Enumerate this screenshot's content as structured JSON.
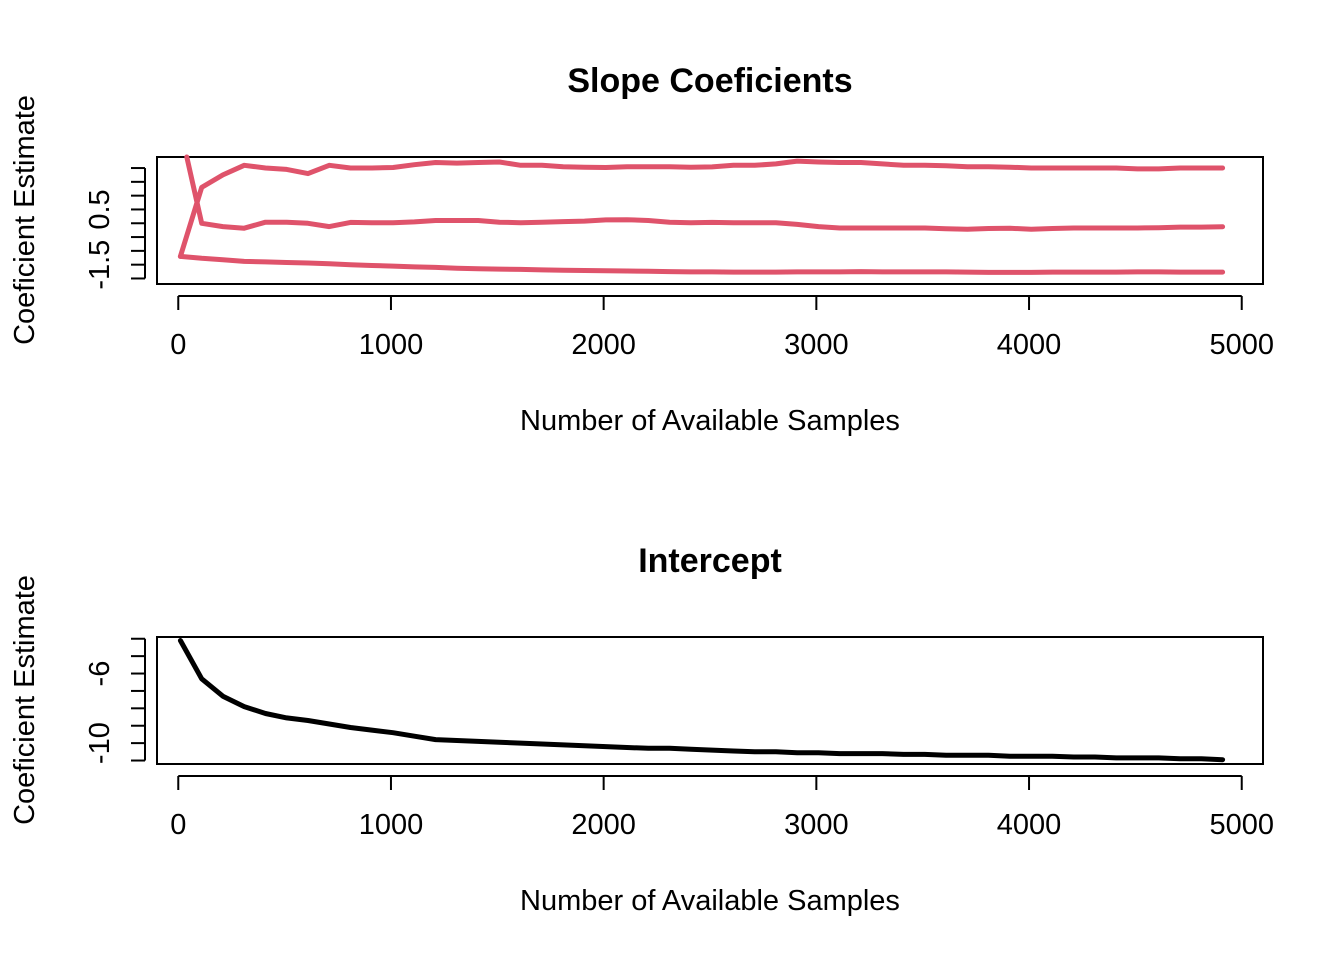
{
  "chart_data": [
    {
      "type": "line",
      "title": "Slope Coeficients",
      "xlabel": "Number of Available Samples",
      "ylabel": "Coeficient Estimate",
      "xlim": [
        -100,
        5100
      ],
      "ylim": [
        -2.2,
        2.4
      ],
      "x_ticks": [
        0,
        1000,
        2000,
        3000,
        4000,
        5000
      ],
      "x_tick_labels": [
        "0",
        "1000",
        "2000",
        "3000",
        "4000",
        "5000"
      ],
      "y_ticks": [
        -2.0,
        -1.5,
        -1.0,
        -0.5,
        0.0,
        0.5,
        1.0,
        1.5,
        2.0
      ],
      "y_tick_labels": [
        "",
        "-1.5",
        "",
        "",
        "",
        "0.5",
        "",
        "",
        ""
      ],
      "grid": false,
      "line_color": "#DF536B",
      "series": [
        {
          "x": [
            10,
            110,
            210,
            310,
            410,
            510,
            610,
            710,
            810,
            910,
            1010,
            1110,
            1210,
            1310,
            1410,
            1510,
            1610,
            1710,
            1810,
            1910,
            2010,
            2110,
            2210,
            2310,
            2410,
            2510,
            2610,
            2710,
            2810,
            2910,
            3010,
            3110,
            3210,
            3310,
            3410,
            3510,
            3610,
            3710,
            3810,
            3910,
            4010,
            4110,
            4210,
            4310,
            4410,
            4510,
            4610,
            4710,
            4810,
            4910
          ],
          "values": [
            -1.2,
            -1.27,
            -1.32,
            -1.38,
            -1.4,
            -1.42,
            -1.44,
            -1.47,
            -1.5,
            -1.53,
            -1.55,
            -1.58,
            -1.6,
            -1.63,
            -1.65,
            -1.66,
            -1.67,
            -1.69,
            -1.7,
            -1.71,
            -1.72,
            -1.73,
            -1.74,
            -1.75,
            -1.76,
            -1.76,
            -1.77,
            -1.77,
            -1.77,
            -1.76,
            -1.76,
            -1.76,
            -1.75,
            -1.76,
            -1.76,
            -1.76,
            -1.76,
            -1.77,
            -1.78,
            -1.78,
            -1.78,
            -1.77,
            -1.77,
            -1.77,
            -1.77,
            -1.76,
            -1.76,
            -1.77,
            -1.77,
            -1.77
          ]
        },
        {
          "x": [
            40,
            110,
            210,
            310,
            410,
            510,
            610,
            710,
            810,
            910,
            1010,
            1110,
            1210,
            1310,
            1410,
            1510,
            1610,
            1710,
            1810,
            1910,
            2010,
            2110,
            2210,
            2310,
            2410,
            2510,
            2610,
            2710,
            2810,
            2910,
            3010,
            3110,
            3210,
            3310,
            3410,
            3510,
            3610,
            3710,
            3810,
            3910,
            4010,
            4110,
            4210,
            4310,
            4410,
            4510,
            4610,
            4710,
            4810,
            4910
          ],
          "values": [
            2.4,
            0.0,
            -0.12,
            -0.18,
            0.04,
            0.04,
            0.0,
            -0.12,
            0.03,
            0.02,
            0.02,
            0.05,
            0.1,
            0.1,
            0.1,
            0.04,
            0.02,
            0.04,
            0.06,
            0.08,
            0.12,
            0.13,
            0.1,
            0.04,
            0.02,
            0.03,
            0.02,
            0.02,
            0.02,
            -0.04,
            -0.12,
            -0.17,
            -0.17,
            -0.17,
            -0.17,
            -0.17,
            -0.2,
            -0.22,
            -0.19,
            -0.18,
            -0.22,
            -0.19,
            -0.17,
            -0.17,
            -0.17,
            -0.17,
            -0.16,
            -0.14,
            -0.14,
            -0.13
          ]
        },
        {
          "x": [
            10,
            110,
            210,
            310,
            410,
            510,
            610,
            710,
            810,
            910,
            1010,
            1110,
            1210,
            1310,
            1410,
            1510,
            1610,
            1710,
            1810,
            1910,
            2010,
            2110,
            2210,
            2310,
            2410,
            2510,
            2610,
            2710,
            2810,
            2910,
            3010,
            3110,
            3210,
            3310,
            3410,
            3510,
            3610,
            3710,
            3810,
            3910,
            4010,
            4110,
            4210,
            4310,
            4410,
            4510,
            4610,
            4710,
            4810,
            4910
          ],
          "values": [
            -1.2,
            1.3,
            1.75,
            2.1,
            2.0,
            1.95,
            1.8,
            2.1,
            2.0,
            2.0,
            2.02,
            2.12,
            2.2,
            2.18,
            2.2,
            2.22,
            2.1,
            2.1,
            2.05,
            2.03,
            2.02,
            2.05,
            2.05,
            2.05,
            2.03,
            2.04,
            2.1,
            2.1,
            2.15,
            2.25,
            2.22,
            2.2,
            2.2,
            2.15,
            2.1,
            2.1,
            2.08,
            2.05,
            2.05,
            2.03,
            2.0,
            2.0,
            2.0,
            2.0,
            2.0,
            1.97,
            1.97,
            2.0,
            2.0,
            2.0
          ]
        }
      ]
    },
    {
      "type": "line",
      "title": "Intercept",
      "xlabel": "Number of Available Samples",
      "ylabel": "Coeficient Estimate",
      "xlim": [
        -100,
        5100
      ],
      "ylim": [
        -11.2,
        -3.9
      ],
      "x_ticks": [
        0,
        1000,
        2000,
        3000,
        4000,
        5000
      ],
      "x_tick_labels": [
        "0",
        "1000",
        "2000",
        "3000",
        "4000",
        "5000"
      ],
      "y_ticks": [
        -11,
        -10,
        -9,
        -8,
        -7,
        -6,
        -5,
        -4
      ],
      "y_tick_labels": [
        "",
        "-10",
        "",
        "",
        "",
        "-6",
        "",
        ""
      ],
      "grid": false,
      "line_color": "#000000",
      "series": [
        {
          "x": [
            10,
            110,
            210,
            310,
            410,
            510,
            610,
            710,
            810,
            910,
            1010,
            1110,
            1210,
            1310,
            1410,
            1510,
            1610,
            1710,
            1810,
            1910,
            2010,
            2110,
            2210,
            2310,
            2410,
            2510,
            2610,
            2710,
            2810,
            2910,
            3010,
            3110,
            3210,
            3310,
            3410,
            3510,
            3610,
            3710,
            3810,
            3910,
            4010,
            4110,
            4210,
            4310,
            4410,
            4510,
            4610,
            4710,
            4810,
            4910
          ],
          "values": [
            -4.1,
            -6.3,
            -7.3,
            -7.9,
            -8.3,
            -8.55,
            -8.7,
            -8.9,
            -9.1,
            -9.25,
            -9.4,
            -9.6,
            -9.8,
            -9.85,
            -9.9,
            -9.95,
            -10.0,
            -10.05,
            -10.1,
            -10.15,
            -10.2,
            -10.25,
            -10.3,
            -10.3,
            -10.35,
            -10.4,
            -10.45,
            -10.5,
            -10.5,
            -10.55,
            -10.55,
            -10.6,
            -10.6,
            -10.6,
            -10.65,
            -10.65,
            -10.7,
            -10.7,
            -10.7,
            -10.75,
            -10.75,
            -10.75,
            -10.8,
            -10.8,
            -10.85,
            -10.85,
            -10.85,
            -10.9,
            -10.9,
            -10.95
          ]
        }
      ]
    }
  ]
}
